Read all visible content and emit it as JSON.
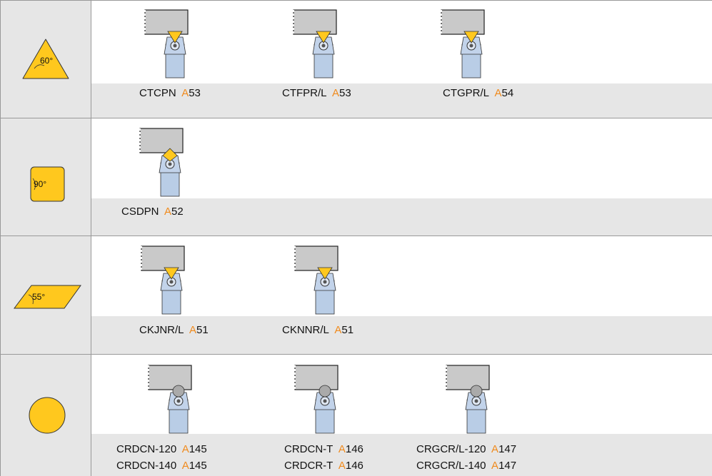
{
  "rows": [
    {
      "angle": "60°",
      "tools": [
        {
          "lines": [
            {
              "code": "CTCPN",
              "letter": "A",
              "page": "53"
            }
          ]
        },
        {
          "lines": [
            {
              "code": "CTFPR/L",
              "letter": "A",
              "page": "53"
            }
          ]
        },
        {
          "lines": [
            {
              "code": "CTGPR/L",
              "letter": "A",
              "page": "54"
            }
          ]
        }
      ]
    },
    {
      "angle": "90°",
      "tools": [
        {
          "lines": [
            {
              "code": "CSDPN",
              "letter": "A",
              "page": "52"
            }
          ]
        }
      ]
    },
    {
      "angle": "55°",
      "tools": [
        {
          "lines": [
            {
              "code": "CKJNR/L",
              "letter": "A",
              "page": "51"
            }
          ]
        },
        {
          "lines": [
            {
              "code": "CKNNR/L",
              "letter": "A",
              "page": "51"
            }
          ]
        }
      ]
    },
    {
      "tools": [
        {
          "lines": [
            {
              "code": "CRDCN-120",
              "letter": "A",
              "page": "145"
            },
            {
              "code": "CRDCN-140",
              "letter": "A",
              "page": "145"
            }
          ]
        },
        {
          "lines": [
            {
              "code": "CRDCN-T",
              "letter": "A",
              "page": "146"
            },
            {
              "code": "CRDCR-T",
              "letter": "A",
              "page": "146"
            }
          ]
        },
        {
          "lines": [
            {
              "code": "CRGCR/L-120",
              "letter": "A",
              "page": "147"
            },
            {
              "code": "CRGCR/L-140",
              "letter": "A",
              "page": "147"
            }
          ]
        }
      ]
    }
  ]
}
